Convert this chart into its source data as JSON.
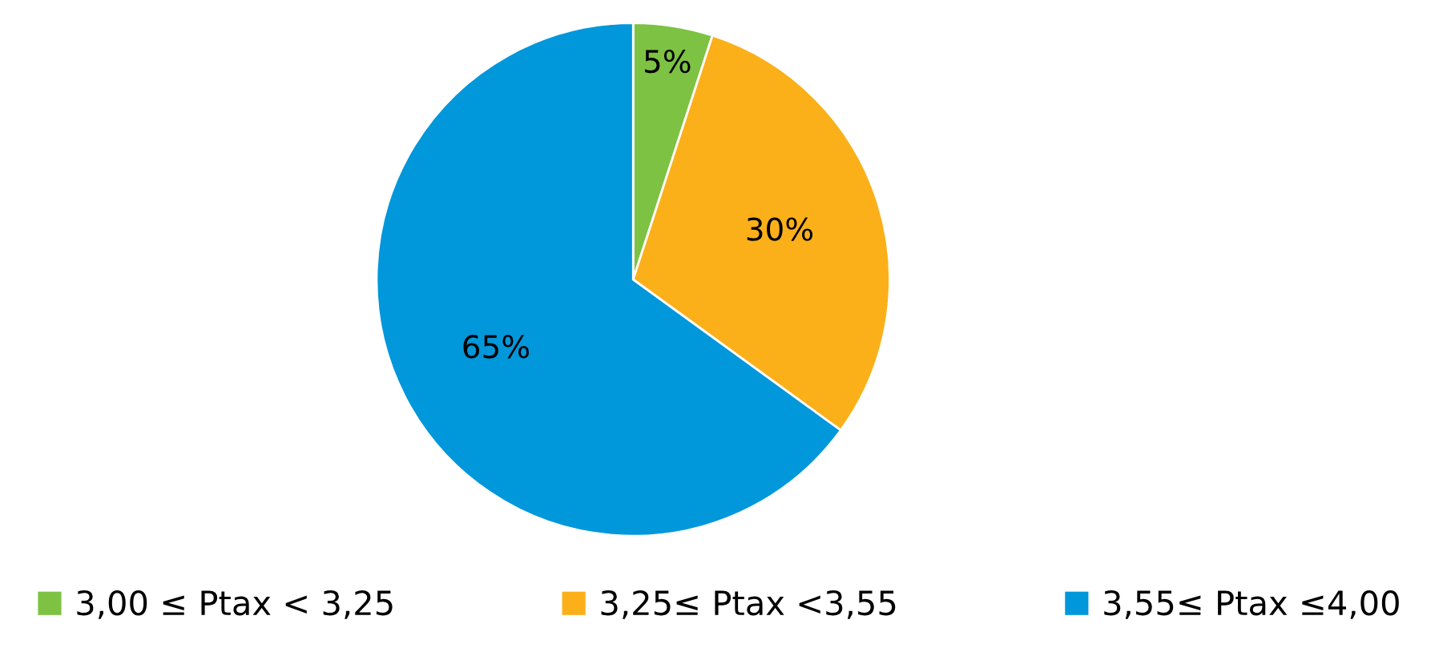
{
  "chart_data": {
    "type": "pie",
    "categories": [
      "3,00 ≤ Ptax < 3,25",
      "3,25≤ Ptax <3,55",
      "3,55≤ Ptax ≤4,00"
    ],
    "values": [
      5,
      30,
      65
    ],
    "colors": [
      "#7dc242",
      "#fbb01a",
      "#0097db"
    ],
    "value_labels": [
      "5%",
      "30%",
      "65%"
    ],
    "legend": "bottom"
  }
}
